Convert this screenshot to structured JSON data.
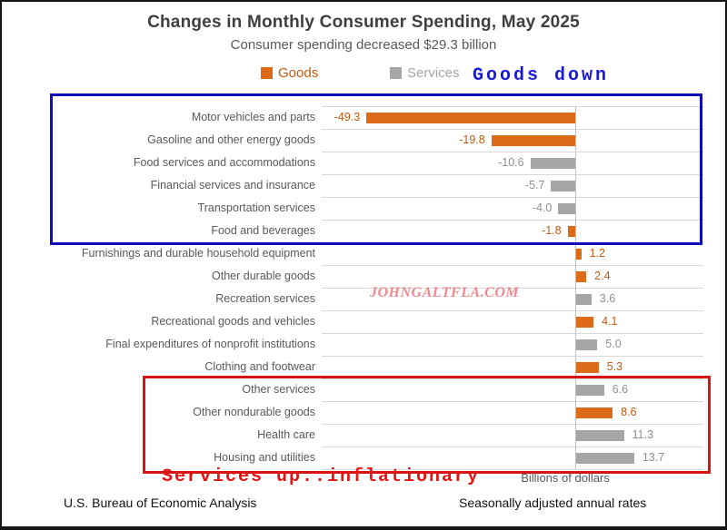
{
  "header": {
    "title": "Changes in Monthly Consumer Spending, May 2025",
    "subtitle": "Consumer spending decreased $29.3 billion"
  },
  "legend": {
    "goods_label": "Goods",
    "services_label": "Services"
  },
  "annotations": {
    "goods_down": "Goods down",
    "services_up": "Services up..inflationary",
    "watermark": "JOHNGALTFLA.COM",
    "axis_caption": "Billions of dollars"
  },
  "footer": {
    "left": "U.S. Bureau of Economic Analysis",
    "right": "Seasonally adjusted annual rates"
  },
  "colors": {
    "goods_bar": "#dd6a18",
    "goods_text": "#c05a11",
    "services_bar": "#a6a6a6",
    "services_text": "#8f8f8f",
    "category_text": "#595959",
    "gridline": "#d9d9d9",
    "axis_line": "#bfbfbf",
    "blue_box": "#0d0db8",
    "blue_text": "#1a1ad9",
    "red_box": "#d61414",
    "red_text": "#e51414",
    "watermark_pink": "#ef6a74",
    "title_text": "#3f3f3f"
  },
  "chart_data": {
    "type": "bar",
    "orientation": "horizontal",
    "title": "Changes in Monthly Consumer Spending, May 2025",
    "subtitle": "Consumer spending decreased $29.3 billion",
    "xlabel": "Billions of dollars",
    "xlim": [
      -60,
      30
    ],
    "grid": "row-separators",
    "legend_position": "top",
    "legend": [
      "Goods",
      "Services"
    ],
    "items": [
      {
        "label": "Motor vehicles and parts",
        "value": -49.3,
        "group": "goods"
      },
      {
        "label": "Gasoline and other energy goods",
        "value": -19.8,
        "group": "goods"
      },
      {
        "label": "Food services and accommodations",
        "value": -10.6,
        "group": "services"
      },
      {
        "label": "Financial services and insurance",
        "value": -5.7,
        "group": "services"
      },
      {
        "label": "Transportation services",
        "value": -4.0,
        "group": "services"
      },
      {
        "label": "Food and beverages",
        "value": -1.8,
        "group": "goods"
      },
      {
        "label": "Furnishings and durable household equipment",
        "value": 1.2,
        "group": "goods"
      },
      {
        "label": "Other durable goods",
        "value": 2.4,
        "group": "goods"
      },
      {
        "label": "Recreation services",
        "value": 3.6,
        "group": "services"
      },
      {
        "label": "Recreational goods and vehicles",
        "value": 4.1,
        "group": "goods"
      },
      {
        "label": "Final expenditures of nonprofit institutions",
        "value": 5.0,
        "group": "services"
      },
      {
        "label": "Clothing and footwear",
        "value": 5.3,
        "group": "goods"
      },
      {
        "label": "Other services",
        "value": 6.6,
        "group": "services"
      },
      {
        "label": "Other nondurable goods",
        "value": 8.6,
        "group": "goods"
      },
      {
        "label": "Health care",
        "value": 11.3,
        "group": "services"
      },
      {
        "label": "Housing and utilities",
        "value": 13.7,
        "group": "services"
      }
    ]
  }
}
